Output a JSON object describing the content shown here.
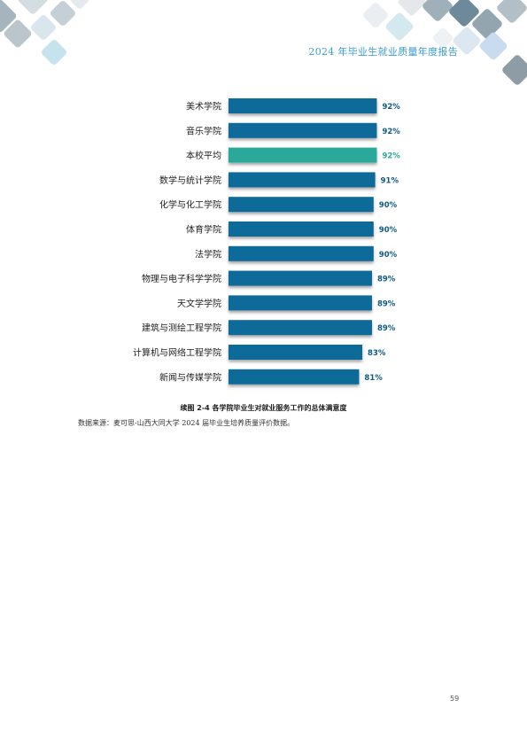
{
  "header": {
    "title": "2024 年毕业生就业质量年度报告"
  },
  "colors": {
    "bar": "#0e6a99",
    "highlight_bar": "#2aa899",
    "value_label": "#0e5a84",
    "highlight_label": "#2aa899"
  },
  "chart_data": {
    "type": "bar",
    "orientation": "horizontal",
    "categories": [
      "美术学院",
      "音乐学院",
      "本校平均",
      "数学与统计学院",
      "化学与化工学院",
      "体育学院",
      "法学院",
      "物理与电子科学学院",
      "天文学学院",
      "建筑与测绘工程学院",
      "计算机与网络工程学院",
      "新闻与传媒学院"
    ],
    "values": [
      92,
      92,
      92,
      91,
      90,
      90,
      90,
      89,
      89,
      89,
      83,
      81
    ],
    "value_labels": [
      "92%",
      "92%",
      "92%",
      "91%",
      "90%",
      "90%",
      "90%",
      "89%",
      "89%",
      "89%",
      "83%",
      "81%"
    ],
    "highlight_index": 2,
    "xlim": [
      0,
      100
    ],
    "grid": false,
    "legend": "none"
  },
  "caption": "续图 2-4  各学院毕业生对就业服务工作的总体满意度",
  "source": "数据来源：麦可思-山西大同大学 2024 届毕业生培养质量评价数据。",
  "page_number": "59"
}
